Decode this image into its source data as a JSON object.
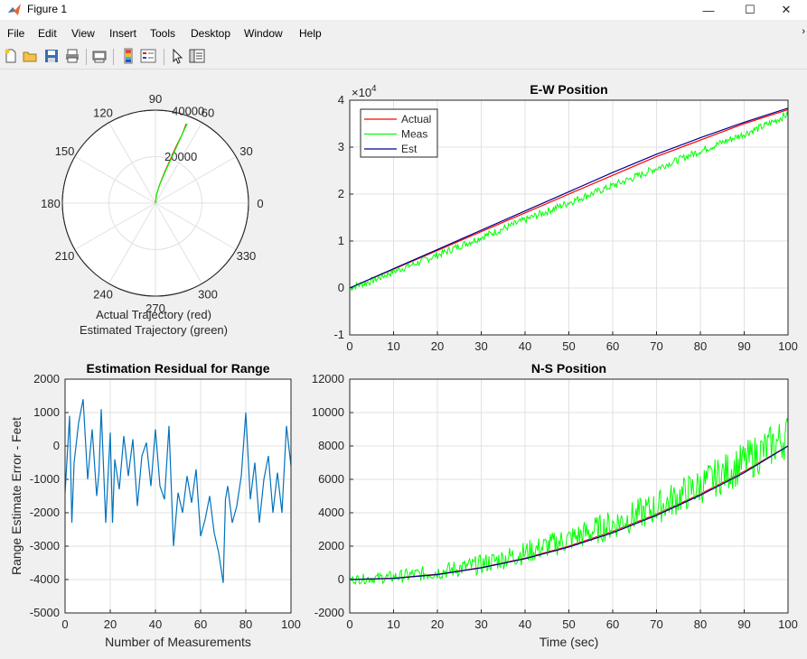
{
  "window": {
    "title": "Figure 1"
  },
  "menu": [
    "File",
    "Edit",
    "View",
    "Insert",
    "Tools",
    "Desktop",
    "Window",
    "Help"
  ],
  "toolbar_icons": [
    "new-figure-icon",
    "open-file-icon",
    "save-icon",
    "print-icon",
    "print-preview-icon",
    "colorbar-icon",
    "legend-icon",
    "edit-pointer-icon",
    "property-inspector-icon"
  ],
  "colors": {
    "actual": "#ff0000",
    "meas": "#00ff00",
    "est": "#00008b",
    "residual": "#0072bd",
    "grid": "#e1e1e1"
  },
  "chart_data": [
    {
      "type": "polar",
      "title": "",
      "xlabel_lines": [
        "Actual Trajectory (red)",
        "Estimated Trajectory (green)"
      ],
      "angle_labels": [
        "0",
        "30",
        "60",
        "90",
        "120",
        "150",
        "180",
        "210",
        "240",
        "270",
        "300",
        "330"
      ],
      "radial_labels": [
        "20000",
        "40000"
      ],
      "rlim": [
        0,
        40000
      ],
      "series": [
        {
          "color": "red",
          "points": [
            [
              1.57,
              0
            ],
            [
              1.45,
              3500
            ],
            [
              1.35,
              8000
            ],
            [
              1.28,
              14000
            ],
            [
              1.24,
              20000
            ],
            [
              1.22,
              26000
            ],
            [
              1.2,
              32000
            ],
            [
              1.2,
              36500
            ]
          ]
        },
        {
          "color": "green",
          "points": [
            [
              1.57,
              0
            ],
            [
              1.45,
              3600
            ],
            [
              1.34,
              8100
            ],
            [
              1.27,
              14100
            ],
            [
              1.23,
              20200
            ],
            [
              1.21,
              26200
            ],
            [
              1.2,
              32100
            ],
            [
              1.19,
              36800
            ]
          ]
        }
      ]
    },
    {
      "type": "line",
      "title": "E-W Position",
      "exponent_label": "×10",
      "exponent_power": "4",
      "xlabel": "",
      "ylabel": "",
      "xlim": [
        0,
        100
      ],
      "ylim": [
        -10000,
        40000
      ],
      "xticks": [
        0,
        10,
        20,
        30,
        40,
        50,
        60,
        70,
        80,
        90,
        100
      ],
      "yticks": [
        -10000,
        0,
        10000,
        20000,
        30000,
        40000
      ],
      "ytick_labels": [
        "-1",
        "0",
        "1",
        "2",
        "3",
        "4"
      ],
      "legend": {
        "position": "top-left",
        "entries": [
          "Actual",
          "Meas",
          "Est"
        ]
      },
      "series": [
        {
          "name": "Actual",
          "x": [
            0,
            10,
            20,
            30,
            40,
            50,
            60,
            70,
            80,
            90,
            100
          ],
          "y": [
            0,
            4000,
            8000,
            12000,
            16000,
            20000,
            24000,
            28000,
            31500,
            35000,
            38000
          ]
        },
        {
          "name": "Meas",
          "x": [
            0,
            5,
            10,
            15,
            20,
            25,
            30,
            35,
            40,
            45,
            50,
            55,
            60,
            65,
            70,
            75,
            80,
            85,
            90,
            95,
            100
          ],
          "y": [
            0,
            1500,
            3500,
            5200,
            7000,
            8900,
            10800,
            12600,
            14500,
            16300,
            18200,
            20000,
            21800,
            23600,
            25500,
            27300,
            29200,
            31000,
            32800,
            34700,
            37000
          ],
          "noise": 800
        },
        {
          "name": "Est",
          "x": [
            0,
            10,
            20,
            30,
            40,
            50,
            60,
            70,
            80,
            90,
            100
          ],
          "y": [
            0,
            4100,
            8200,
            12300,
            16400,
            20500,
            24600,
            28500,
            32000,
            35300,
            38300
          ]
        }
      ]
    },
    {
      "type": "line",
      "title": "Estimation Residual for Range",
      "xlabel": "Number of Measurements",
      "ylabel": "Range Estimate Error - Feet",
      "xlim": [
        0,
        100
      ],
      "ylim": [
        -5000,
        2000
      ],
      "xticks": [
        0,
        20,
        40,
        60,
        80,
        100
      ],
      "yticks": [
        -5000,
        -4000,
        -3000,
        -2000,
        -1000,
        0,
        1000,
        2000
      ],
      "series": [
        {
          "name": "",
          "x": [
            0,
            2,
            3,
            4,
            6,
            8,
            10,
            12,
            14,
            15,
            16,
            18,
            20,
            21,
            22,
            24,
            26,
            28,
            30,
            32,
            34,
            36,
            38,
            40,
            42,
            44,
            46,
            48,
            50,
            52,
            54,
            56,
            58,
            60,
            62,
            64,
            66,
            68,
            70,
            71,
            72,
            74,
            76,
            78,
            80,
            82,
            84,
            86,
            88,
            90,
            92,
            94,
            96,
            98,
            100
          ],
          "y": [
            -1400,
            900,
            -2300,
            -500,
            700,
            1400,
            -1000,
            500,
            -1500,
            -800,
            1100,
            -2300,
            400,
            -2300,
            -400,
            -1300,
            300,
            -900,
            200,
            -1800,
            -300,
            100,
            -1200,
            500,
            -1200,
            -1600,
            600,
            -3000,
            -1400,
            -2000,
            -900,
            -1700,
            -700,
            -2700,
            -2200,
            -1500,
            -2600,
            -3200,
            -4100,
            -1600,
            -1200,
            -2300,
            -1800,
            -900,
            1000,
            -1600,
            -500,
            -2300,
            -1000,
            -300,
            -2000,
            -800,
            -2000,
            600,
            -600
          ]
        }
      ]
    },
    {
      "type": "line",
      "title": "N-S Position",
      "xlabel": "Time (sec)",
      "ylabel": "",
      "xlim": [
        0,
        100
      ],
      "ylim": [
        -2000,
        12000
      ],
      "xticks": [
        0,
        10,
        20,
        30,
        40,
        50,
        60,
        70,
        80,
        90,
        100
      ],
      "yticks": [
        -2000,
        0,
        2000,
        4000,
        6000,
        8000,
        10000,
        12000
      ],
      "series": [
        {
          "name": "Actual",
          "x": [
            0,
            10,
            20,
            30,
            40,
            50,
            60,
            70,
            80,
            90,
            100
          ],
          "y": [
            0,
            80,
            320,
            720,
            1280,
            2000,
            2880,
            3920,
            5120,
            6480,
            8000
          ]
        },
        {
          "name": "Meas",
          "x": [
            0,
            10,
            20,
            30,
            40,
            50,
            60,
            70,
            80,
            90,
            100
          ],
          "y": [
            0,
            150,
            450,
            900,
            1600,
            2400,
            3300,
            4300,
            5600,
            7000,
            8600
          ],
          "noise": 900
        },
        {
          "name": "Est",
          "x": [
            0,
            10,
            20,
            30,
            40,
            50,
            60,
            70,
            80,
            90,
            100
          ],
          "y": [
            0,
            70,
            300,
            700,
            1250,
            1950,
            2800,
            3850,
            5050,
            6400,
            8000
          ]
        }
      ]
    }
  ]
}
